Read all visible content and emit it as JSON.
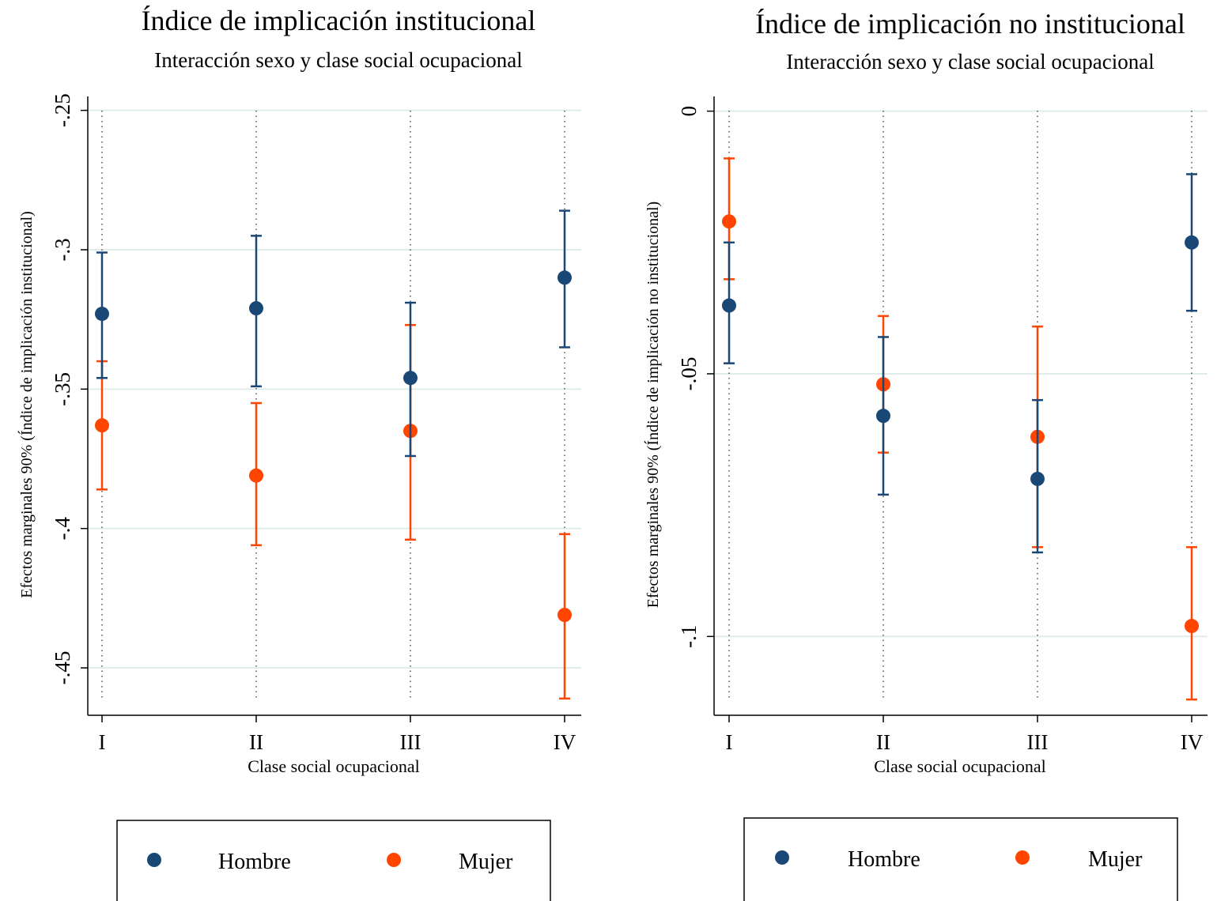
{
  "colors": {
    "hombre": "#1a4876",
    "mujer": "#ff4500",
    "grid": "#e0ecec"
  },
  "chart_data": [
    {
      "type": "scatter",
      "title": "Índice de implicación institucional",
      "subtitle": "Interacción sexo y clase social ocupacional",
      "xlabel": "Clase social ocupacional",
      "ylabel": "Efectos marginales 90% (Índice de implicación institucional)",
      "categories": [
        "I",
        "II",
        "III",
        "IV"
      ],
      "yticks": [
        -0.25,
        -0.3,
        -0.35,
        -0.4,
        -0.45
      ],
      "ytick_labels": [
        "-.25",
        "-.3",
        "-.35",
        "-.4",
        "-.45"
      ],
      "ylim": [
        -0.467,
        -0.245
      ],
      "series": [
        {
          "name": "Hombre",
          "values": [
            -0.323,
            -0.321,
            -0.346,
            -0.31
          ],
          "lower": [
            -0.346,
            -0.349,
            -0.374,
            -0.335
          ],
          "upper": [
            -0.301,
            -0.295,
            -0.319,
            -0.286
          ]
        },
        {
          "name": "Mujer",
          "values": [
            -0.363,
            -0.381,
            -0.365,
            -0.431
          ],
          "lower": [
            -0.386,
            -0.406,
            -0.404,
            -0.461
          ],
          "upper": [
            -0.34,
            -0.355,
            -0.327,
            -0.402
          ]
        }
      ],
      "legend": {
        "position": "bottom"
      }
    },
    {
      "type": "scatter",
      "title": "Índice de implicación no institucional",
      "subtitle": "Interacción sexo y clase social ocupacional",
      "xlabel": "Clase social ocupacional",
      "ylabel": "Efectos marginales 90% (Índice de implicación no institucional)",
      "categories": [
        "I",
        "II",
        "III",
        "IV"
      ],
      "yticks": [
        0,
        -0.05,
        -0.1
      ],
      "ytick_labels": [
        "0",
        "-.05",
        "-.1"
      ],
      "ylim": [
        -0.115,
        0.0028
      ],
      "series": [
        {
          "name": "Hombre",
          "values": [
            -0.037,
            -0.058,
            -0.07,
            -0.025
          ],
          "lower": [
            -0.048,
            -0.073,
            -0.084,
            -0.038
          ],
          "upper": [
            -0.025,
            -0.043,
            -0.055,
            -0.012
          ]
        },
        {
          "name": "Mujer",
          "values": [
            -0.021,
            -0.052,
            -0.062,
            -0.098
          ],
          "lower": [
            -0.032,
            -0.065,
            -0.083,
            -0.112
          ],
          "upper": [
            -0.009,
            -0.039,
            -0.041,
            -0.083
          ]
        }
      ],
      "legend": {
        "position": "bottom"
      }
    }
  ]
}
